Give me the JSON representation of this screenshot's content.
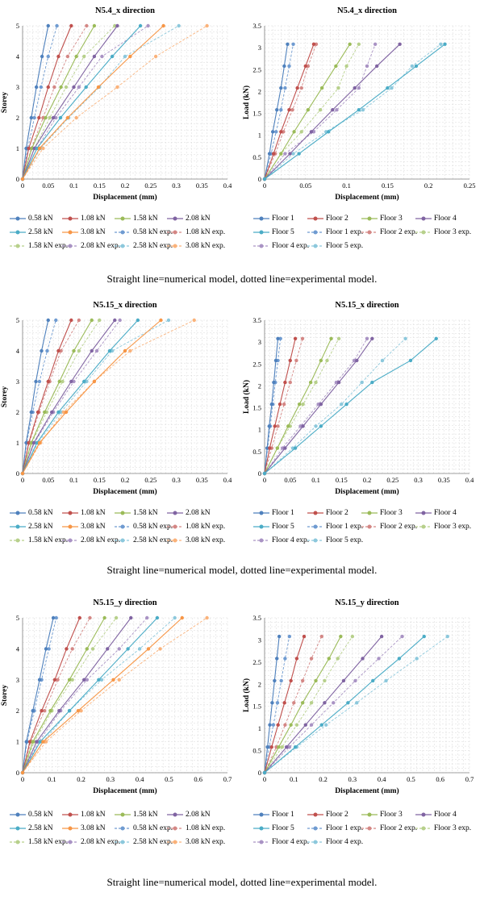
{
  "captions": [
    "Straight line=numerical model, dotted line=experimental model.",
    "Straight line=numerical model, dotted line=experimental model.",
    "Straight line=numerical model, dotted line=experimental model."
  ],
  "colors": {
    "c1": "#4F81BD",
    "c2": "#C0504D",
    "c3": "#9BBB59",
    "c4": "#8064A2",
    "c5": "#4BACC6",
    "c6": "#F79646",
    "c1e": "#6F9BD1",
    "c2e": "#D48785",
    "c3e": "#B7D08B",
    "c4e": "#A993C4",
    "c5e": "#8CC8DC",
    "c6e": "#FAB27A"
  },
  "legends": {
    "storey_chart": [
      "0.58 kN",
      "1.08 kN",
      "1.58 kN",
      "2.08 kN",
      "2.58 kN",
      "3.08 kN",
      "0.58 kN exp.",
      "1.08 kN exp.",
      "1.58 kN exp.",
      "2.08 kN exp.",
      "2.58 kN exp.",
      "3.08 kN exp."
    ],
    "load_chart_1": [
      "Floor 1",
      "Floor 2",
      "Floor 3",
      "Floor 4",
      "Floor 5",
      "Floor 1 exp.",
      "Floor 2 exp.",
      "Floor 3 exp.",
      "Floor 4 exp.",
      "Floor 5 exp."
    ],
    "load_chart_3": [
      "Floor 1",
      "Floor 2",
      "Floor 3",
      "Floor 4",
      "Floor 5",
      "Floor 1 exp.",
      "Floor 2 exp.",
      "Floor 3 exp.",
      "Floor 4 exp.",
      "Floor 4 exp."
    ]
  },
  "chart_data": [
    {
      "type": "line",
      "title": "N5.4_x direction",
      "xlabel": "Displacement (mm)",
      "ylabel": "Storey",
      "xlim": [
        0,
        0.4
      ],
      "ylim": [
        0,
        5
      ],
      "xticks": [
        "0",
        "0.05",
        "0.1",
        "0.15",
        "0.2",
        "0.25",
        "0.3",
        "0.35",
        "0.4"
      ],
      "yticks": [
        "0",
        "1",
        "2",
        "3",
        "4",
        "5"
      ],
      "y": [
        0,
        1,
        2,
        3,
        4,
        5
      ],
      "series": [
        {
          "name": "0.58 kN",
          "x": [
            0,
            0.007,
            0.017,
            0.027,
            0.038,
            0.05
          ]
        },
        {
          "name": "1.08 kN",
          "x": [
            0,
            0.012,
            0.032,
            0.05,
            0.07,
            0.095
          ]
        },
        {
          "name": "1.58 kN",
          "x": [
            0,
            0.018,
            0.045,
            0.075,
            0.105,
            0.14
          ]
        },
        {
          "name": "2.08 kN",
          "x": [
            0,
            0.023,
            0.06,
            0.1,
            0.14,
            0.185
          ]
        },
        {
          "name": "2.58 kN",
          "x": [
            0,
            0.028,
            0.074,
            0.124,
            0.175,
            0.23
          ]
        },
        {
          "name": "3.08 kN",
          "x": [
            0,
            0.033,
            0.088,
            0.148,
            0.21,
            0.275
          ]
        },
        {
          "name": "0.58 kN exp.",
          "x": [
            0,
            0.01,
            0.023,
            0.036,
            0.05,
            0.067
          ]
        },
        {
          "name": "1.08 kN exp.",
          "x": [
            0,
            0.017,
            0.04,
            0.062,
            0.088,
            0.125
          ]
        },
        {
          "name": "1.58 kN exp.",
          "x": [
            0,
            0.023,
            0.053,
            0.085,
            0.12,
            0.18
          ]
        },
        {
          "name": "2.08 kN exp.",
          "x": [
            0,
            0.028,
            0.065,
            0.11,
            0.155,
            0.245
          ]
        },
        {
          "name": "2.58 kN exp.",
          "x": [
            0,
            0.035,
            0.09,
            0.15,
            0.2,
            0.305
          ]
        },
        {
          "name": "3.08 kN exp.",
          "x": [
            0,
            0.04,
            0.105,
            0.185,
            0.26,
            0.36
          ]
        }
      ]
    },
    {
      "type": "line",
      "title": "N5.4_x direction",
      "xlabel": "Displacement (mm)",
      "ylabel": "Load (kN)",
      "xlim": [
        0,
        0.25
      ],
      "ylim": [
        0,
        3.5
      ],
      "xticks": [
        "0",
        "0.05",
        "0.1",
        "0.15",
        "0.2",
        "0.25"
      ],
      "yticks": [
        "0",
        "0.5",
        "1",
        "1.5",
        "2",
        "2.5",
        "3",
        "3.5"
      ],
      "y": [
        0,
        0.58,
        1.08,
        1.58,
        2.08,
        2.58,
        3.08
      ],
      "series": [
        {
          "name": "Floor 1",
          "x": [
            0,
            0.006,
            0.01,
            0.015,
            0.02,
            0.024,
            0.028
          ]
        },
        {
          "name": "Floor 2",
          "x": [
            0,
            0.011,
            0.02,
            0.03,
            0.04,
            0.05,
            0.06
          ]
        },
        {
          "name": "Floor 3",
          "x": [
            0,
            0.02,
            0.036,
            0.053,
            0.07,
            0.087,
            0.104
          ]
        },
        {
          "name": "Floor 4",
          "x": [
            0,
            0.031,
            0.057,
            0.083,
            0.11,
            0.137,
            0.165
          ]
        },
        {
          "name": "Floor 5",
          "x": [
            0,
            0.042,
            0.078,
            0.115,
            0.15,
            0.185,
            0.22
          ]
        },
        {
          "name": "Floor 1 exp.",
          "x": [
            0,
            0.008,
            0.014,
            0.02,
            0.025,
            0.03,
            0.035
          ]
        },
        {
          "name": "Floor 2 exp.",
          "x": [
            0,
            0.013,
            0.023,
            0.034,
            0.045,
            0.053,
            0.063
          ]
        },
        {
          "name": "Floor 3 exp.",
          "x": [
            0,
            0.02,
            0.045,
            0.068,
            0.09,
            0.1,
            0.115
          ]
        },
        {
          "name": "Floor 4 exp.",
          "x": [
            0,
            0.025,
            0.06,
            0.088,
            0.115,
            0.125,
            0.135
          ]
        },
        {
          "name": "Floor 5 exp.",
          "x": [
            0,
            0.035,
            0.075,
            0.12,
            0.155,
            0.18,
            0.215
          ]
        }
      ]
    },
    {
      "type": "line",
      "title": "N5.15_x direction",
      "xlabel": "Displacement (mm)",
      "ylabel": "Storey",
      "xlim": [
        0,
        0.4
      ],
      "ylim": [
        0,
        5
      ],
      "xticks": [
        "0",
        "0.05",
        "0.1",
        "0.15",
        "0.2",
        "0.25",
        "0.3",
        "0.35",
        "0.4"
      ],
      "yticks": [
        "0",
        "1",
        "2",
        "3",
        "4",
        "5"
      ],
      "y": [
        0,
        1,
        2,
        3,
        4,
        5
      ],
      "series": [
        {
          "name": "0.58 kN",
          "x": [
            0,
            0.007,
            0.017,
            0.026,
            0.037,
            0.05
          ]
        },
        {
          "name": "1.08 kN",
          "x": [
            0,
            0.012,
            0.03,
            0.05,
            0.07,
            0.095
          ]
        },
        {
          "name": "1.58 kN",
          "x": [
            0,
            0.017,
            0.043,
            0.072,
            0.1,
            0.135
          ]
        },
        {
          "name": "2.08 kN",
          "x": [
            0,
            0.022,
            0.057,
            0.095,
            0.135,
            0.18
          ]
        },
        {
          "name": "2.58 kN",
          "x": [
            0,
            0.028,
            0.07,
            0.12,
            0.17,
            0.225
          ]
        },
        {
          "name": "3.08 kN",
          "x": [
            0,
            0.033,
            0.085,
            0.14,
            0.2,
            0.27
          ]
        },
        {
          "name": "0.58 kN exp.",
          "x": [
            0,
            0.008,
            0.02,
            0.033,
            0.048,
            0.065
          ]
        },
        {
          "name": "1.08 kN exp.",
          "x": [
            0,
            0.013,
            0.032,
            0.053,
            0.075,
            0.11
          ]
        },
        {
          "name": "1.58 kN exp.",
          "x": [
            0,
            0.018,
            0.047,
            0.078,
            0.11,
            0.15
          ]
        },
        {
          "name": "2.08 kN exp.",
          "x": [
            0,
            0.023,
            0.06,
            0.1,
            0.145,
            0.19
          ]
        },
        {
          "name": "2.58 kN exp.",
          "x": [
            0,
            0.03,
            0.075,
            0.125,
            0.175,
            0.285
          ]
        },
        {
          "name": "3.08 kN exp.",
          "x": [
            0,
            0.035,
            0.08,
            0.14,
            0.21,
            0.335
          ]
        }
      ]
    },
    {
      "type": "line",
      "title": "N5.15_x direction",
      "xlabel": "Displacement (mm)",
      "ylabel": "Load (kN)",
      "xlim": [
        0,
        0.4
      ],
      "ylim": [
        0,
        3.5
      ],
      "xticks": [
        "0",
        "0.05",
        "0.1",
        "0.15",
        "0.2",
        "0.25",
        "0.3",
        "0.35",
        "0.4"
      ],
      "yticks": [
        "0",
        "0.5",
        "1",
        "1.5",
        "2",
        "2.5",
        "3",
        "3.5"
      ],
      "y": [
        0,
        0.58,
        1.08,
        1.58,
        2.08,
        2.58,
        3.08
      ],
      "series": [
        {
          "name": "Floor 1",
          "x": [
            0,
            0.005,
            0.009,
            0.014,
            0.018,
            0.022,
            0.026
          ]
        },
        {
          "name": "Floor 2",
          "x": [
            0,
            0.01,
            0.02,
            0.03,
            0.04,
            0.05,
            0.06
          ]
        },
        {
          "name": "Floor 3",
          "x": [
            0,
            0.025,
            0.046,
            0.068,
            0.09,
            0.11,
            0.13
          ]
        },
        {
          "name": "Floor 4",
          "x": [
            0,
            0.04,
            0.075,
            0.11,
            0.145,
            0.18,
            0.21
          ]
        },
        {
          "name": "Floor 5",
          "x": [
            0,
            0.06,
            0.11,
            0.16,
            0.21,
            0.285,
            0.335
          ]
        },
        {
          "name": "Floor 1 exp.",
          "x": [
            0,
            0.006,
            0.011,
            0.016,
            0.021,
            0.026,
            0.031
          ]
        },
        {
          "name": "Floor 2 exp.",
          "x": [
            0,
            0.014,
            0.026,
            0.038,
            0.05,
            0.062,
            0.074
          ]
        },
        {
          "name": "Floor 3 exp.",
          "x": [
            0,
            0.025,
            0.05,
            0.075,
            0.1,
            0.122,
            0.145
          ]
        },
        {
          "name": "Floor 4 exp.",
          "x": [
            0,
            0.035,
            0.07,
            0.105,
            0.14,
            0.175,
            0.2
          ]
        },
        {
          "name": "Floor 5 exp.",
          "x": [
            0,
            0.055,
            0.1,
            0.15,
            0.19,
            0.23,
            0.275
          ]
        }
      ]
    },
    {
      "type": "line",
      "title": "N5.15_y direction",
      "xlabel": "Displacement (mm)",
      "ylabel": "Storey",
      "xlim": [
        0,
        0.7
      ],
      "ylim": [
        0,
        5
      ],
      "xticks": [
        "0",
        "0.1",
        "0.2",
        "0.3",
        "0.4",
        "0.5",
        "0.6",
        "0.7"
      ],
      "yticks": [
        "0",
        "1",
        "2",
        "3",
        "4",
        "5"
      ],
      "y": [
        0,
        1,
        2,
        3,
        4,
        5
      ],
      "series": [
        {
          "name": "0.58 kN",
          "x": [
            0,
            0.013,
            0.035,
            0.058,
            0.08,
            0.105
          ]
        },
        {
          "name": "1.08 kN",
          "x": [
            0,
            0.025,
            0.065,
            0.11,
            0.15,
            0.195
          ]
        },
        {
          "name": "1.58 kN",
          "x": [
            0,
            0.035,
            0.095,
            0.16,
            0.22,
            0.28
          ]
        },
        {
          "name": "2.08 kN",
          "x": [
            0,
            0.048,
            0.125,
            0.21,
            0.29,
            0.37
          ]
        },
        {
          "name": "2.58 kN",
          "x": [
            0,
            0.06,
            0.16,
            0.26,
            0.36,
            0.46
          ]
        },
        {
          "name": "3.08 kN",
          "x": [
            0,
            0.07,
            0.19,
            0.31,
            0.43,
            0.545
          ]
        },
        {
          "name": "0.58 kN exp.",
          "x": [
            0,
            0.015,
            0.04,
            0.065,
            0.09,
            0.115
          ]
        },
        {
          "name": "1.08 kN exp.",
          "x": [
            0,
            0.028,
            0.075,
            0.12,
            0.17,
            0.23
          ]
        },
        {
          "name": "1.58 kN exp.",
          "x": [
            0,
            0.04,
            0.1,
            0.17,
            0.24,
            0.32
          ]
        },
        {
          "name": "2.08 kN exp.",
          "x": [
            0,
            0.055,
            0.13,
            0.22,
            0.33,
            0.425
          ]
        },
        {
          "name": "2.58 kN exp.",
          "x": [
            0,
            0.07,
            0.16,
            0.27,
            0.4,
            0.52
          ]
        },
        {
          "name": "3.08 kN exp.",
          "x": [
            0,
            0.08,
            0.2,
            0.33,
            0.47,
            0.63
          ]
        }
      ]
    },
    {
      "type": "line",
      "title": "N5.15_y direction",
      "xlabel": "Displacement (mm)",
      "ylabel": "Load (kN)",
      "xlim": [
        0,
        0.7
      ],
      "ylim": [
        0,
        3.5
      ],
      "xticks": [
        "0",
        "0.1",
        "0.2",
        "0.3",
        "0.4",
        "0.5",
        "0.6",
        "0.7"
      ],
      "yticks": [
        "0",
        "0.5",
        "1",
        "1.5",
        "2",
        "2.5",
        "3",
        "3.5"
      ],
      "y": [
        0,
        0.58,
        1.08,
        1.58,
        2.08,
        2.58,
        3.08
      ],
      "series": [
        {
          "name": "Floor 1",
          "x": [
            0,
            0.01,
            0.018,
            0.026,
            0.034,
            0.042,
            0.05
          ]
        },
        {
          "name": "Floor 2",
          "x": [
            0,
            0.024,
            0.046,
            0.068,
            0.09,
            0.11,
            0.135
          ]
        },
        {
          "name": "Floor 3",
          "x": [
            0,
            0.048,
            0.09,
            0.13,
            0.175,
            0.22,
            0.26
          ]
        },
        {
          "name": "Floor 4",
          "x": [
            0,
            0.075,
            0.14,
            0.205,
            0.27,
            0.335,
            0.4
          ]
        },
        {
          "name": "Floor 5",
          "x": [
            0,
            0.105,
            0.195,
            0.285,
            0.37,
            0.46,
            0.545
          ]
        },
        {
          "name": "Floor 1 exp.",
          "x": [
            0,
            0.016,
            0.03,
            0.044,
            0.057,
            0.07,
            0.085
          ]
        },
        {
          "name": "Floor 2 exp.",
          "x": [
            0,
            0.04,
            0.07,
            0.1,
            0.13,
            0.16,
            0.195
          ]
        },
        {
          "name": "Floor 3 exp.",
          "x": [
            0,
            0.06,
            0.11,
            0.16,
            0.205,
            0.25,
            0.3
          ]
        },
        {
          "name": "Floor 4 exp.",
          "x": [
            0,
            0.085,
            0.16,
            0.235,
            0.31,
            0.39,
            0.47
          ]
        },
        {
          "name": "Floor 4 exp.",
          "x": [
            0,
            0.11,
            0.21,
            0.315,
            0.415,
            0.52,
            0.625
          ]
        }
      ]
    }
  ]
}
